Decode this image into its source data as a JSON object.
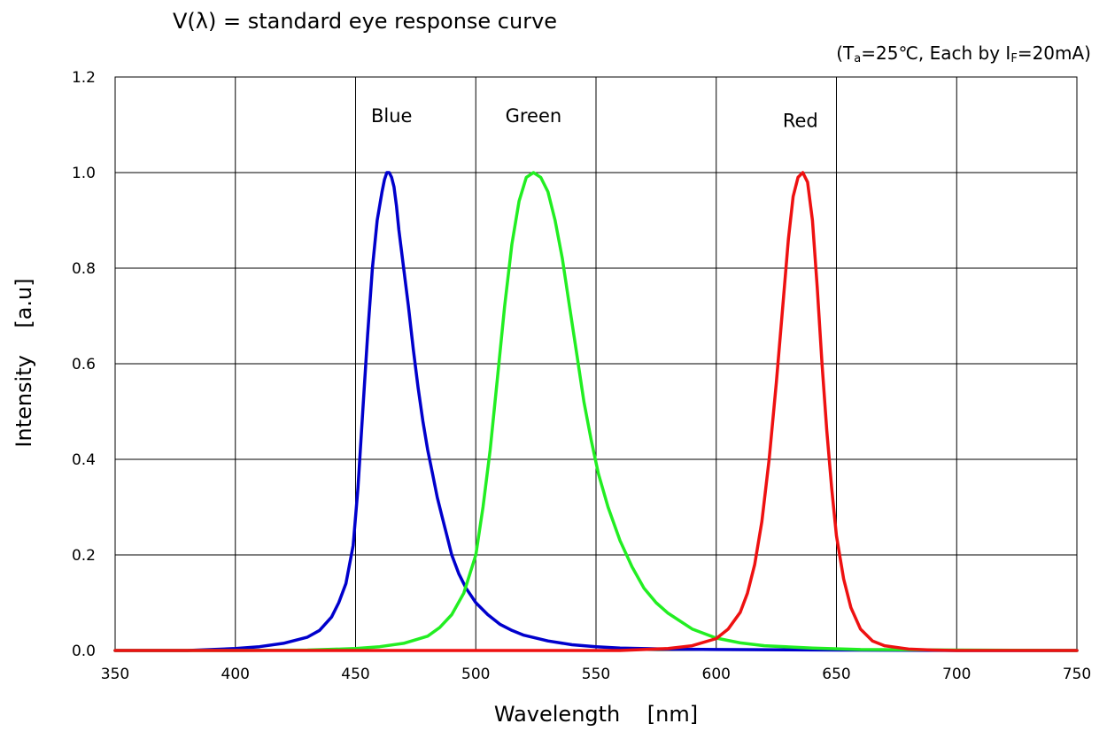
{
  "chart_data": {
    "type": "line",
    "title": "V(λ) = standard eye response curve",
    "condition": {
      "prefix": "(T",
      "ta_sub": "a",
      "middle": "=25℃, Each by I",
      "if_sub": "F",
      "suffix": "=20mA)"
    },
    "xlabel": "Wavelength    [nm]",
    "ylabel": "Intensity    [a.u]",
    "xlim": [
      350,
      750
    ],
    "ylim": [
      0,
      1.2
    ],
    "xticks": [
      350,
      400,
      450,
      500,
      550,
      600,
      650,
      700,
      750
    ],
    "yticks": [
      "0.0",
      "0.2",
      "0.4",
      "0.6",
      "0.8",
      "1.0",
      "1.2"
    ],
    "grid": true,
    "series": [
      {
        "name": "Blue",
        "color": "#0000cc",
        "x": [
          350,
          380,
          400,
          410,
          420,
          430,
          435,
          440,
          443,
          446,
          449,
          451,
          453,
          455,
          457,
          459,
          461,
          462,
          463,
          464,
          465,
          466,
          467,
          468,
          470,
          472,
          474,
          476,
          478,
          480,
          482,
          484,
          486,
          488,
          490,
          493,
          496,
          500,
          505,
          510,
          515,
          520,
          530,
          540,
          550,
          560,
          580,
          600,
          650,
          700,
          750
        ],
        "y": [
          0,
          0,
          0.004,
          0.008,
          0.015,
          0.028,
          0.042,
          0.07,
          0.1,
          0.14,
          0.22,
          0.34,
          0.5,
          0.66,
          0.8,
          0.9,
          0.96,
          0.985,
          1.0,
          1.0,
          0.99,
          0.97,
          0.93,
          0.88,
          0.8,
          0.72,
          0.63,
          0.55,
          0.48,
          0.42,
          0.37,
          0.32,
          0.28,
          0.24,
          0.2,
          0.16,
          0.13,
          0.1,
          0.075,
          0.055,
          0.042,
          0.032,
          0.02,
          0.012,
          0.008,
          0.005,
          0.003,
          0.002,
          0.001,
          0,
          0
        ]
      },
      {
        "name": "Green",
        "color": "#22ee22",
        "x": [
          350,
          400,
          430,
          450,
          460,
          470,
          480,
          485,
          490,
          495,
          500,
          503,
          506,
          509,
          512,
          515,
          518,
          521,
          524,
          527,
          530,
          533,
          536,
          539,
          542,
          545,
          548,
          551,
          555,
          560,
          565,
          570,
          575,
          580,
          590,
          600,
          610,
          620,
          640,
          660,
          700,
          750
        ],
        "y": [
          0,
          0,
          0.001,
          0.004,
          0.008,
          0.015,
          0.03,
          0.048,
          0.075,
          0.12,
          0.2,
          0.3,
          0.42,
          0.57,
          0.72,
          0.85,
          0.94,
          0.99,
          1.0,
          0.99,
          0.96,
          0.9,
          0.82,
          0.72,
          0.62,
          0.52,
          0.44,
          0.37,
          0.3,
          0.23,
          0.175,
          0.13,
          0.1,
          0.078,
          0.045,
          0.026,
          0.016,
          0.01,
          0.005,
          0.002,
          0.001,
          0
        ]
      },
      {
        "name": "Red",
        "color": "#ee1111",
        "x": [
          350,
          560,
          580,
          590,
          600,
          605,
          610,
          613,
          616,
          619,
          622,
          625,
          628,
          630,
          632,
          634,
          636,
          638,
          640,
          642,
          644,
          646,
          648,
          650,
          653,
          656,
          660,
          665,
          670,
          680,
          690,
          700,
          750
        ],
        "y": [
          0,
          0,
          0.004,
          0.01,
          0.025,
          0.045,
          0.08,
          0.12,
          0.18,
          0.27,
          0.4,
          0.56,
          0.74,
          0.86,
          0.95,
          0.99,
          1.0,
          0.98,
          0.9,
          0.76,
          0.6,
          0.46,
          0.34,
          0.24,
          0.15,
          0.09,
          0.045,
          0.02,
          0.01,
          0.003,
          0.001,
          0,
          0
        ]
      }
    ],
    "annotations": [
      {
        "text": "Blue",
        "x": 465,
        "y": 1.12
      },
      {
        "text": "Green",
        "x": 524,
        "y": 1.12
      },
      {
        "text": "Red",
        "x": 635,
        "y": 1.11
      }
    ]
  }
}
